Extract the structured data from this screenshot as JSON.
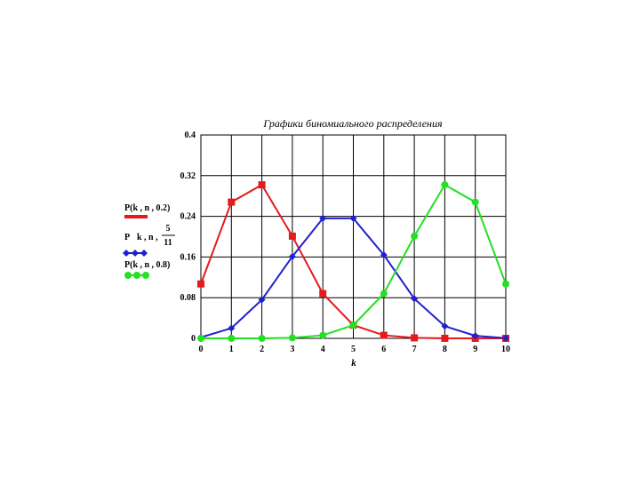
{
  "chart_data": {
    "type": "line",
    "title": "Графики биномиального распределения",
    "xlabel": "k",
    "ylabel": "",
    "xlim": [
      0,
      10
    ],
    "ylim": [
      0,
      0.4
    ],
    "x_ticks": [
      "0",
      "1",
      "2",
      "3",
      "4",
      "5",
      "6",
      "7",
      "8",
      "9",
      "10"
    ],
    "y_ticks": [
      "0",
      "0.08",
      "0.16",
      "0.24",
      "0.32",
      "0.4"
    ],
    "grid": true,
    "legend_position": "left",
    "x": [
      0,
      1,
      2,
      3,
      4,
      5,
      6,
      7,
      8,
      9,
      10
    ],
    "series": [
      {
        "name": "P(k, n, 0.2)",
        "color": "#e41a1c",
        "marker": "square",
        "values": [
          0.107,
          0.268,
          0.302,
          0.201,
          0.088,
          0.026,
          0.006,
          0.001,
          0.0001,
          0.0,
          0.0
        ]
      },
      {
        "name": "P(k, n, 5/11)",
        "color": "#2020d0",
        "marker": "diamond",
        "values": [
          0.002,
          0.02,
          0.076,
          0.161,
          0.236,
          0.236,
          0.164,
          0.078,
          0.024,
          0.005,
          0.0004
        ]
      },
      {
        "name": "P(k, n, 0.8)",
        "color": "#22e022",
        "marker": "circle",
        "values": [
          0.0,
          0.0,
          0.0001,
          0.001,
          0.006,
          0.026,
          0.088,
          0.201,
          0.302,
          0.268,
          0.107
        ]
      }
    ],
    "legend": {
      "red_label": "P(k , n , 0.2)",
      "blue_label_prefix": "P",
      "blue_label_args": "k , n ,",
      "blue_frac_num": "5",
      "blue_frac_den": "11",
      "green_label": "P(k , n , 0.8)"
    }
  }
}
